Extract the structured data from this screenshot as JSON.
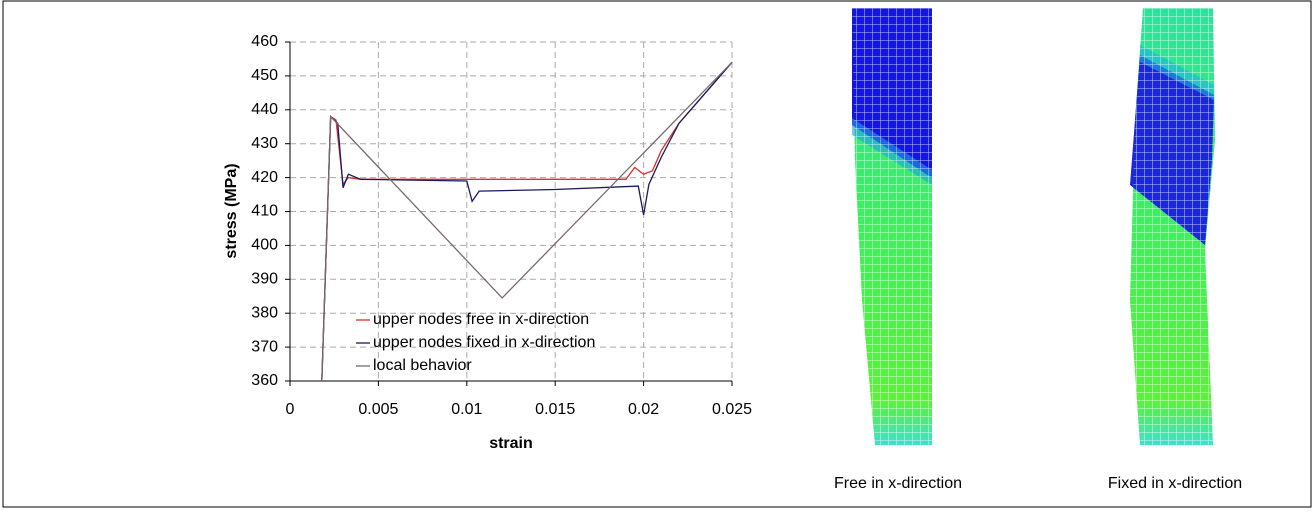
{
  "chart_data": {
    "type": "line",
    "y_label": "stress (MPa)",
    "x_label": "strain",
    "xlim": [
      0,
      0.025
    ],
    "xticks": [
      0,
      0.005,
      0.01,
      0.015,
      0.02,
      0.025
    ],
    "ylim": [
      360,
      460
    ],
    "yticks": [
      360,
      370,
      380,
      390,
      400,
      410,
      420,
      430,
      440,
      450,
      460
    ],
    "grid": true,
    "legend": "bottom",
    "series": [
      {
        "name": "upper nodes free in x-direction",
        "color": "#e0302a",
        "x": [
          0.0018,
          0.0023,
          0.0026,
          0.003,
          0.0033,
          0.004,
          0.01,
          0.019,
          0.0195,
          0.02,
          0.0205,
          0.021,
          0.022,
          0.025
        ],
        "values": [
          360,
          438,
          437,
          418,
          420,
          419.5,
          419.5,
          419.5,
          423,
          421,
          422,
          428,
          436,
          454
        ]
      },
      {
        "name": "upper nodes fixed in x-direction",
        "color": "#1a1a5e",
        "x": [
          0.0018,
          0.0023,
          0.0027,
          0.003,
          0.0033,
          0.004,
          0.01,
          0.0103,
          0.0107,
          0.015,
          0.0197,
          0.02,
          0.0203,
          0.021,
          0.022,
          0.025
        ],
        "values": [
          360,
          438,
          436,
          417,
          421,
          419.5,
          419,
          413,
          416,
          416.5,
          417.5,
          409,
          418,
          426,
          436,
          454
        ]
      },
      {
        "name": "local behavior",
        "color": "#7a6a6a",
        "x": [
          0.0018,
          0.0023,
          0.012,
          0.025
        ],
        "values": [
          360,
          438,
          384.5,
          454
        ]
      }
    ]
  },
  "images": [
    {
      "caption": "Free in x-direction"
    },
    {
      "caption": "Fixed in x-direction"
    }
  ]
}
